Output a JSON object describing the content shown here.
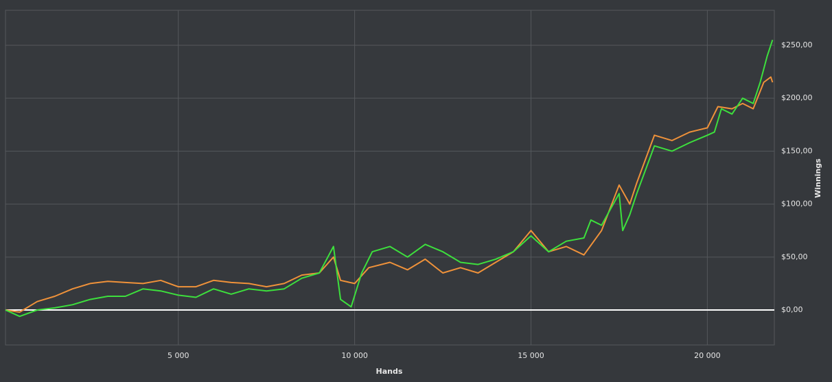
{
  "chart_data": {
    "type": "line",
    "xlabel": "Hands",
    "ylabel": "Winnings",
    "xlim": [
      100,
      21900
    ],
    "ylim": [
      -33,
      283
    ],
    "xticks": [
      {
        "value": 5000,
        "label": "5 000"
      },
      {
        "value": 10000,
        "label": "10 000"
      },
      {
        "value": 15000,
        "label": "15 000"
      },
      {
        "value": 20000,
        "label": "20 000"
      }
    ],
    "yticks": [
      {
        "value": 0,
        "label": "$0,00"
      },
      {
        "value": 50,
        "label": "$50,00"
      },
      {
        "value": 100,
        "label": "$100,00"
      },
      {
        "value": 150,
        "label": "$150,00"
      },
      {
        "value": 200,
        "label": "$200,00"
      },
      {
        "value": 250,
        "label": "$250,00"
      }
    ],
    "grid": true,
    "baseline": 0,
    "series": [
      {
        "color": "#f0923a",
        "x": [
          100,
          500,
          1000,
          1500,
          2000,
          2500,
          3000,
          3500,
          4000,
          4500,
          5000,
          5500,
          6000,
          6500,
          7000,
          7500,
          8000,
          8500,
          9000,
          9400,
          9600,
          10000,
          10400,
          11000,
          11500,
          12000,
          12500,
          13000,
          13500,
          14000,
          14500,
          15000,
          15500,
          16000,
          16500,
          17000,
          17500,
          17800,
          18000,
          18500,
          19000,
          19500,
          20000,
          20300,
          20700,
          21000,
          21300,
          21600,
          21800,
          21850
        ],
        "values": [
          0,
          -2,
          8,
          13,
          20,
          25,
          27,
          26,
          25,
          28,
          22,
          22,
          28,
          26,
          25,
          22,
          25,
          33,
          35,
          50,
          28,
          25,
          40,
          45,
          38,
          48,
          35,
          40,
          35,
          45,
          55,
          75,
          55,
          60,
          52,
          75,
          118,
          100,
          120,
          165,
          160,
          168,
          172,
          192,
          190,
          195,
          190,
          215,
          220,
          215
        ]
      },
      {
        "color": "#3de03d",
        "x": [
          100,
          500,
          1000,
          1500,
          2000,
          2500,
          3000,
          3500,
          4000,
          4500,
          5000,
          5500,
          6000,
          6500,
          7000,
          7500,
          8000,
          8500,
          9000,
          9400,
          9600,
          9900,
          10200,
          10500,
          11000,
          11500,
          12000,
          12500,
          13000,
          13500,
          14000,
          14500,
          15000,
          15500,
          16000,
          16500,
          16700,
          17000,
          17500,
          17600,
          17800,
          18000,
          18500,
          19000,
          19500,
          20000,
          20200,
          20400,
          20700,
          21000,
          21300,
          21500,
          21700,
          21850
        ],
        "values": [
          0,
          -6,
          0,
          2,
          5,
          10,
          13,
          13,
          20,
          18,
          14,
          12,
          20,
          15,
          20,
          18,
          20,
          30,
          35,
          60,
          10,
          3,
          35,
          55,
          60,
          50,
          62,
          55,
          45,
          43,
          48,
          55,
          70,
          55,
          65,
          68,
          85,
          80,
          110,
          75,
          90,
          110,
          155,
          150,
          158,
          165,
          168,
          190,
          185,
          200,
          195,
          215,
          240,
          255
        ]
      }
    ]
  }
}
